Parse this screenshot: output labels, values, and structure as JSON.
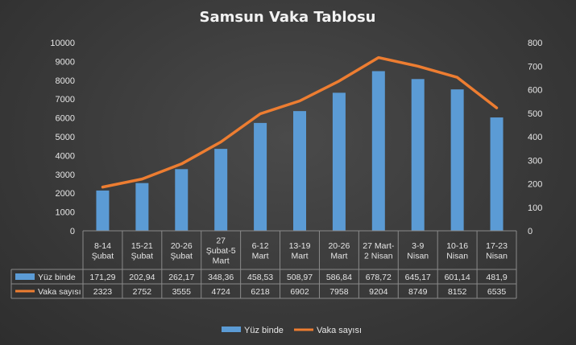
{
  "chart_data": {
    "type": "bar",
    "title": "Samsun Vaka Tablosu",
    "categories": [
      [
        "8-14",
        "Şubat"
      ],
      [
        "15-21",
        "Şubat"
      ],
      [
        "20-26",
        "Şubat"
      ],
      [
        "27",
        "Şubat-5",
        "Mart"
      ],
      [
        "6-12",
        "Mart"
      ],
      [
        "13-19",
        "Mart"
      ],
      [
        "20-26",
        "Mart"
      ],
      [
        "27 Mart-",
        "2 Nisan"
      ],
      [
        "3-9",
        "Nisan"
      ],
      [
        "10-16",
        "Nisan"
      ],
      [
        "17-23",
        "Nisan"
      ]
    ],
    "series": [
      {
        "name": "Yüz binde",
        "type": "bar",
        "axis": "right",
        "color": "#5b9bd5",
        "values": [
          171.29,
          202.94,
          262.17,
          348.36,
          458.53,
          508.97,
          586.84,
          678.72,
          645.17,
          601.14,
          481.9
        ],
        "labels": [
          "171,29",
          "202,94",
          "262,17",
          "348,36",
          "458,53",
          "508,97",
          "586,84",
          "678,72",
          "645,17",
          "601,14",
          "481,9"
        ]
      },
      {
        "name": "Vaka sayısı",
        "type": "line",
        "axis": "left",
        "color": "#ed7d31",
        "values": [
          2323,
          2752,
          3555,
          4724,
          6218,
          6902,
          7958,
          9204,
          8749,
          8152,
          6535
        ],
        "labels": [
          "2323",
          "2752",
          "3555",
          "4724",
          "6218",
          "6902",
          "7958",
          "9204",
          "8749",
          "8152",
          "6535"
        ]
      }
    ],
    "y_left": {
      "min": 0,
      "max": 10000,
      "ticks": [
        "0",
        "1000",
        "2000",
        "3000",
        "4000",
        "5000",
        "6000",
        "7000",
        "8000",
        "9000",
        "10000"
      ]
    },
    "y_right": {
      "min": 0,
      "max": 800,
      "ticks": [
        "0",
        "100",
        "200",
        "300",
        "400",
        "500",
        "600",
        "700",
        "800"
      ]
    },
    "data_table": true,
    "legend_position": "bottom",
    "grid": false
  }
}
